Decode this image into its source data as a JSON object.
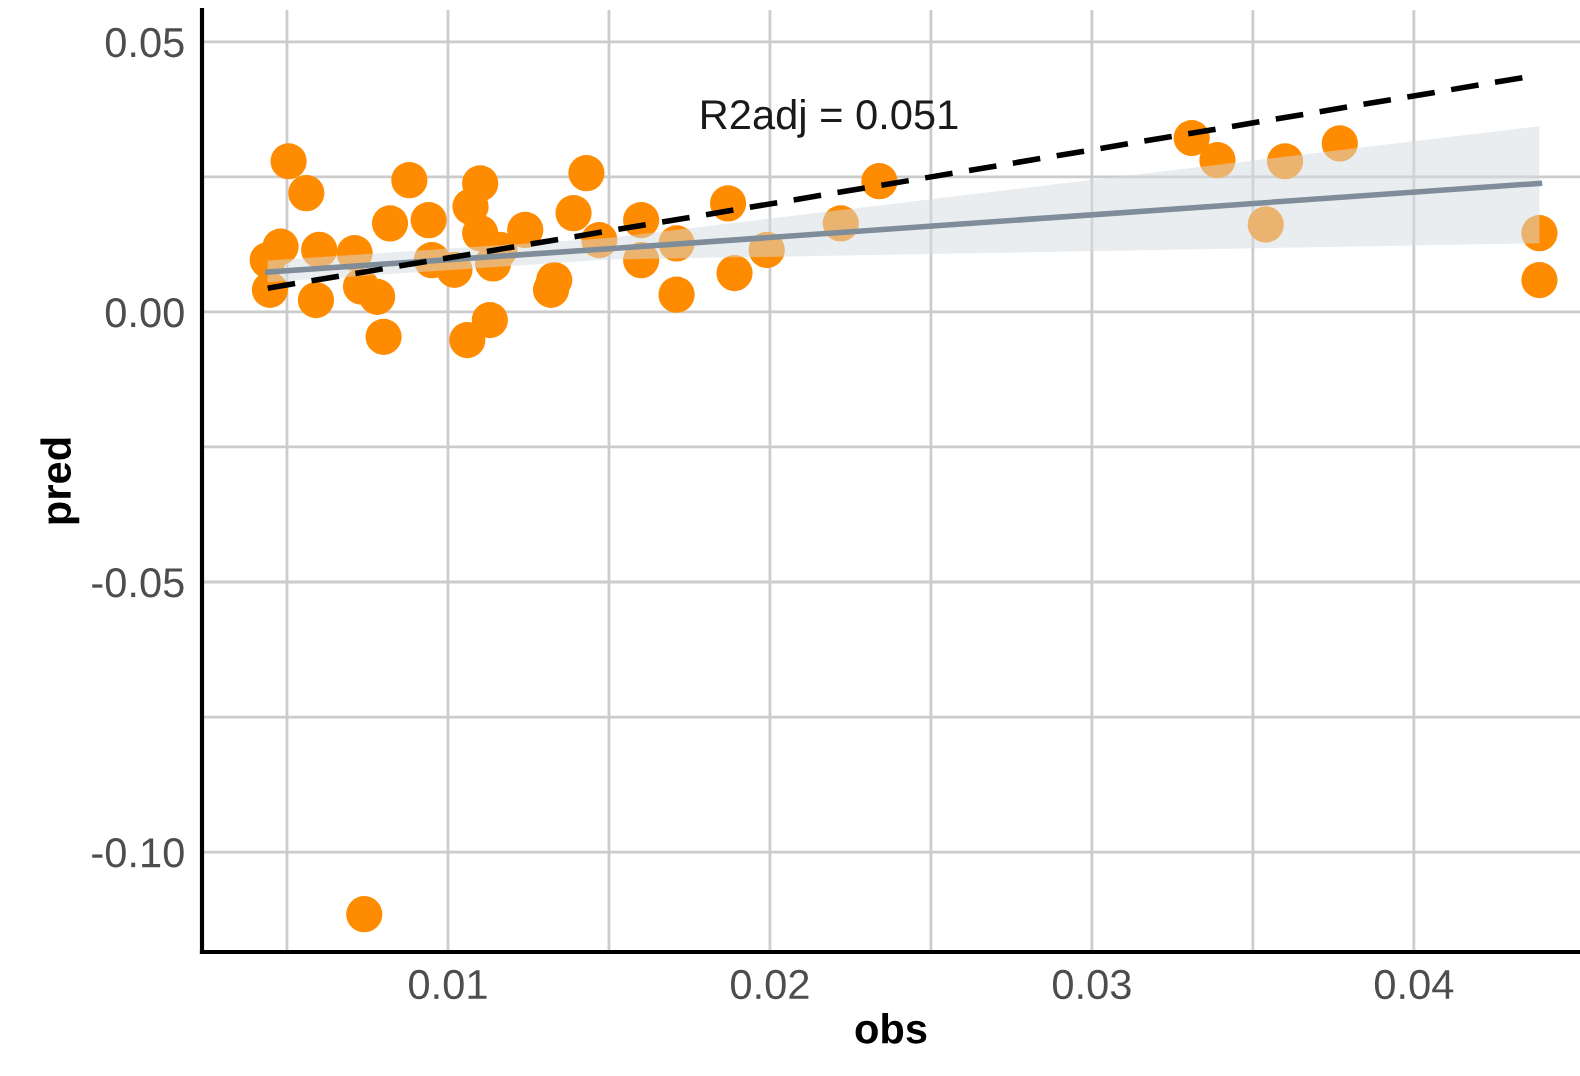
{
  "chart_data": {
    "type": "scatter",
    "xlabel": "obs",
    "ylabel": "pred",
    "annotations": [
      "R2adj = 0.051"
    ],
    "xlim": [
      0.00236,
      0.04516
    ],
    "ylim": [
      -0.1185,
      0.0559
    ],
    "xticks": [
      {
        "value": 0.005,
        "label": null
      },
      {
        "value": 0.01,
        "label": "0.01"
      },
      {
        "value": 0.015,
        "label": null
      },
      {
        "value": 0.02,
        "label": "0.02"
      },
      {
        "value": 0.025,
        "label": null
      },
      {
        "value": 0.03,
        "label": "0.03"
      },
      {
        "value": 0.035,
        "label": null
      },
      {
        "value": 0.04,
        "label": "0.04"
      }
    ],
    "yticks": [
      {
        "value": -0.1,
        "label": "-0.10"
      },
      {
        "value": -0.075,
        "label": null
      },
      {
        "value": -0.05,
        "label": "-0.05"
      },
      {
        "value": -0.025,
        "label": null
      },
      {
        "value": 0,
        "label": "0.00"
      },
      {
        "value": 0.025,
        "label": null
      },
      {
        "value": 0.05,
        "label": "0.05"
      }
    ],
    "grid": true,
    "legend": false,
    "series": [
      {
        "type": "scatter",
        "marker": "circle",
        "color": "#ff8c00",
        "x": [
          0.00505,
          0.0056,
          0.0048,
          0.0044,
          0.00447,
          0.0059,
          0.006,
          0.0071,
          0.0073,
          0.008,
          0.0082,
          0.0088,
          0.0078,
          0.0094,
          0.0095,
          0.011,
          0.0107,
          0.0106,
          0.0113,
          0.011,
          0.0114,
          0.0124,
          0.0133,
          0.0143,
          0.0139,
          0.016,
          0.016,
          0.0171,
          0.0171,
          0.0187,
          0.0189,
          0.0199,
          0.0102,
          0.0116,
          0.0147,
          0.0132,
          0.0234,
          0.0222,
          0.0331,
          0.0339,
          0.036,
          0.0377,
          0.0354,
          0.0439,
          0.0439,
          0.0074
        ],
        "values": [
          0.0279,
          0.022,
          0.0121,
          0.0096,
          0.0041,
          0.0022,
          0.0115,
          0.0109,
          0.0047,
          -0.0046,
          0.0164,
          0.0244,
          0.0028,
          0.017,
          0.0096,
          0.0238,
          0.0195,
          -0.0052,
          -0.0015,
          0.0146,
          0.009,
          0.0152,
          0.0059,
          0.0257,
          0.0183,
          0.017,
          0.0096,
          0.0127,
          0.0032,
          0.0201,
          0.0072,
          0.0115,
          0.0078,
          0.0115,
          0.0133,
          0.0041,
          0.0242,
          0.0164,
          0.0322,
          0.0281,
          0.0279,
          0.0312,
          0.0162,
          0.0146,
          0.0059,
          -0.1115
        ]
      },
      {
        "type": "line",
        "color": "#7f8c99",
        "x": [
          0.0044,
          0.015,
          0.0439
        ],
        "values": [
          0.0074,
          0.0117,
          0.0238
        ],
        "lower": [
          0.0055,
          0.0097,
          0.0127
        ],
        "upper": [
          0.0095,
          0.0137,
          0.0344
        ],
        "line_style": "solid"
      },
      {
        "type": "line",
        "color": "#000000",
        "x": [
          0.0044,
          0.0435
        ],
        "values": [
          0.0044,
          0.0435
        ],
        "line_style": "dashed"
      }
    ]
  }
}
